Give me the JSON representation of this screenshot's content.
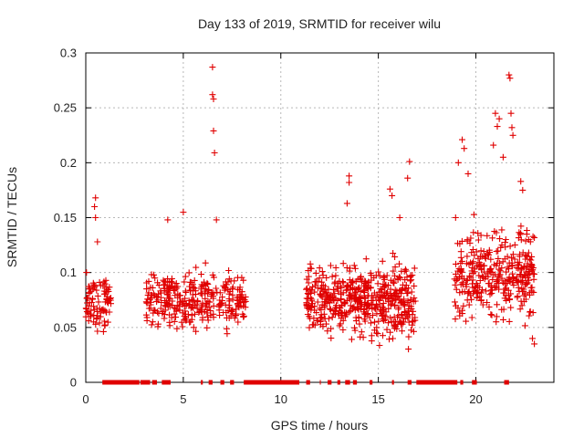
{
  "chart_data": {
    "type": "scatter",
    "title": "Day 133 of 2019, SRMTID for receiver wilu",
    "xlabel": "GPS time / hours",
    "ylabel": "SRMTID / TECUs",
    "xlim": [
      0,
      24
    ],
    "ylim": [
      0,
      0.3
    ],
    "grid": true,
    "marker": "+",
    "color": "#e00000",
    "xticks": [
      0,
      5,
      10,
      15,
      20
    ],
    "xtick_labels": [
      "0",
      "5",
      "10",
      "15",
      "20"
    ],
    "yticks": [
      0,
      0.05,
      0.1,
      0.15,
      0.2,
      0.25,
      0.3
    ],
    "ytick_labels": [
      "0",
      "0.05",
      "0.1",
      "0.15",
      "0.2",
      "0.25",
      "0.3"
    ],
    "clusters": [
      {
        "x_range": [
          0.0,
          1.3
        ],
        "y_center": 0.07,
        "y_spread": 0.025,
        "count": 90
      },
      {
        "x_range": [
          3.1,
          8.2
        ],
        "y_center": 0.075,
        "y_spread": 0.025,
        "count": 330
      },
      {
        "x_range": [
          11.3,
          16.9
        ],
        "y_center": 0.075,
        "y_spread": 0.03,
        "count": 520
      },
      {
        "x_range": [
          18.9,
          23.0
        ],
        "y_center": 0.1,
        "y_spread": 0.04,
        "count": 340
      }
    ],
    "outliers": [
      [
        0.5,
        0.168
      ],
      [
        0.45,
        0.16
      ],
      [
        0.5,
        0.15
      ],
      [
        0.6,
        0.128
      ],
      [
        6.5,
        0.287
      ],
      [
        6.5,
        0.262
      ],
      [
        6.55,
        0.258
      ],
      [
        6.55,
        0.229
      ],
      [
        6.6,
        0.209
      ],
      [
        5.0,
        0.155
      ],
      [
        6.7,
        0.148
      ],
      [
        4.2,
        0.148
      ],
      [
        13.5,
        0.188
      ],
      [
        13.5,
        0.182
      ],
      [
        13.4,
        0.163
      ],
      [
        15.6,
        0.176
      ],
      [
        15.7,
        0.17
      ],
      [
        16.6,
        0.201
      ],
      [
        16.5,
        0.186
      ],
      [
        16.1,
        0.15
      ],
      [
        19.3,
        0.221
      ],
      [
        19.4,
        0.213
      ],
      [
        19.1,
        0.2
      ],
      [
        19.6,
        0.19
      ],
      [
        21.0,
        0.245
      ],
      [
        21.2,
        0.24
      ],
      [
        21.1,
        0.233
      ],
      [
        20.9,
        0.216
      ],
      [
        21.7,
        0.28
      ],
      [
        21.75,
        0.277
      ],
      [
        21.8,
        0.245
      ],
      [
        21.85,
        0.232
      ],
      [
        21.9,
        0.225
      ],
      [
        21.4,
        0.205
      ],
      [
        22.3,
        0.183
      ],
      [
        22.4,
        0.175
      ],
      [
        22.7,
        0.098
      ],
      [
        22.9,
        0.04
      ],
      [
        23.0,
        0.035
      ]
    ],
    "zero_value_segments": [
      [
        0.85,
        2.75
      ],
      [
        2.8,
        3.3
      ],
      [
        3.4,
        3.65
      ],
      [
        3.9,
        4.35
      ],
      [
        5.9,
        6.0
      ],
      [
        6.3,
        6.5
      ],
      [
        6.9,
        7.1
      ],
      [
        7.4,
        7.6
      ],
      [
        8.1,
        10.95
      ],
      [
        11.3,
        11.5
      ],
      [
        12.0,
        12.05
      ],
      [
        12.4,
        12.6
      ],
      [
        12.9,
        13.05
      ],
      [
        13.3,
        13.55
      ],
      [
        13.7,
        13.9
      ],
      [
        14.55,
        14.7
      ],
      [
        15.7,
        15.8
      ],
      [
        16.5,
        16.7
      ],
      [
        16.95,
        19.05
      ],
      [
        19.2,
        19.35
      ],
      [
        19.8,
        20.05
      ],
      [
        21.45,
        21.7
      ]
    ]
  }
}
